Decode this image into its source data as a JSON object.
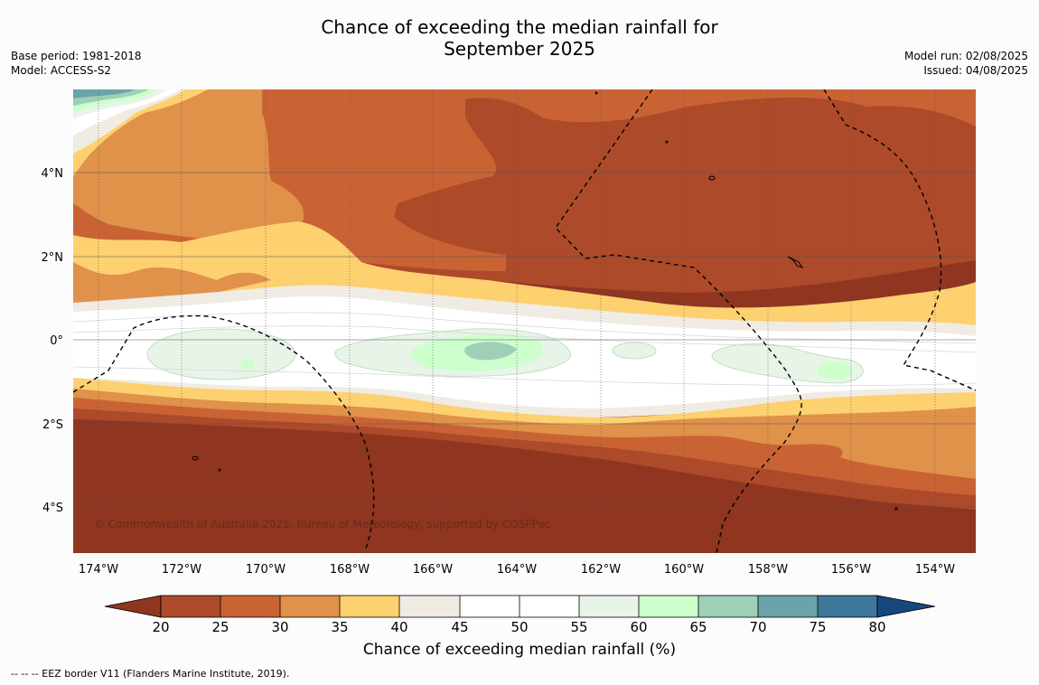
{
  "title_line1": "Chance of exceeding the median rainfall for",
  "title_line2": "September 2025",
  "meta_left": {
    "base_period": "Base period: 1981-2018",
    "model": "Model: ACCESS-S2"
  },
  "meta_right": {
    "model_run": "Model run: 02/08/2025",
    "issued": "Issued: 04/08/2025"
  },
  "map": {
    "lat_labels": [
      "4°N",
      "2°N",
      "0°",
      "2°S",
      "4°S"
    ],
    "lon_labels": [
      "174°W",
      "172°W",
      "170°W",
      "168°W",
      "166°W",
      "164°W",
      "162°W",
      "160°W",
      "158°W",
      "156°W",
      "154°W"
    ],
    "copyright": "© Commonwealth of Australia 2025, Bureau of Meteorology, supported by COSPPac"
  },
  "colorbar": {
    "ticks": [
      "20",
      "25",
      "30",
      "35",
      "40",
      "45",
      "50",
      "55",
      "60",
      "65",
      "70",
      "75",
      "80"
    ],
    "colors": {
      "below_20": "#8f3520",
      "20_25": "#ad4a2a",
      "25_30": "#c96334",
      "30_35": "#e0914a",
      "35_40": "#fdd070",
      "40_45": "#f0ebe3",
      "45_50": "#ffffff",
      "50_55": "#ffffff",
      "55_60": "#e8f4e8",
      "60_65": "#ccffcc",
      "65_70": "#9dd0b6",
      "70_75": "#6aa3a8",
      "75_80": "#3d7799",
      "above_80": "#17477d"
    },
    "label": "Chance of exceeding median rainfall (%)"
  },
  "eez_note": "--  --  -- EEZ border V11 (Flanders Marine Institute, 2019)."
}
